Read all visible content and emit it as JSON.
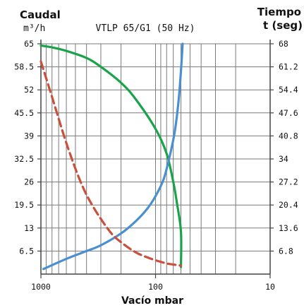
{
  "chart_data": {
    "type": "line",
    "title": "VTLP 65/G1 (50 Hz)",
    "ylabel_left": "Caudal",
    "ylabel_left_unit": "m³/h",
    "ylabel_right": "Tiempo",
    "ylabel_right_unit": "t (seg)",
    "xlabel": "Vacío mbar",
    "x_scale": "log-reversed",
    "xlim": [
      1000,
      10
    ],
    "x_ticks": [
      {
        "value": 1000,
        "label": "1000"
      },
      {
        "value": 100,
        "label": "100"
      },
      {
        "value": 10,
        "label": "10"
      }
    ],
    "ylim_left": [
      0,
      65
    ],
    "y_ticks_left": [
      "65",
      "58.5",
      "52",
      "45.5",
      "39",
      "32.5",
      "26",
      "19.5",
      "13",
      "6.5"
    ],
    "y_ticks_left_values": [
      65,
      58.5,
      52,
      45.5,
      39,
      32.5,
      26,
      19.5,
      13,
      6.5
    ],
    "ylim_right": [
      0,
      68
    ],
    "y_ticks_right": [
      "68",
      "61.2",
      "54.4",
      "47.6",
      "40.8",
      "34",
      "27.2",
      "20.4",
      "13.6",
      "6.8"
    ],
    "grid": true,
    "series": [
      {
        "color": "#1aa34a",
        "dash": "solid",
        "axis": "left",
        "x": [
          1000,
          800,
          600,
          400,
          300,
          200,
          150,
          100,
          80,
          70,
          65,
          60,
          60
        ],
        "y": [
          64.5,
          64,
          63,
          61,
          58.5,
          54,
          49.5,
          41,
          34,
          26,
          20,
          12,
          2
        ]
      },
      {
        "color": "#4a8fd0",
        "dash": "solid",
        "axis": "right",
        "x": [
          950,
          600,
          400,
          300,
          200,
          150,
          120,
          100,
          85,
          75,
          68,
          63,
          60,
          58
        ],
        "y": [
          1.5,
          4.5,
          6.8,
          8.5,
          12,
          15.5,
          19,
          23,
          28,
          35,
          42,
          51,
          60,
          68
        ]
      },
      {
        "color": "#c9503c",
        "dash": "dashed",
        "axis": "left",
        "x": [
          1000,
          800,
          600,
          450,
          350,
          250,
          200,
          150,
          120,
          100,
          80,
          70,
          60
        ],
        "y": [
          60,
          50,
          37,
          26,
          19,
          12,
          9,
          6.2,
          4.8,
          3.9,
          3.0,
          2.7,
          2.4
        ]
      }
    ]
  }
}
